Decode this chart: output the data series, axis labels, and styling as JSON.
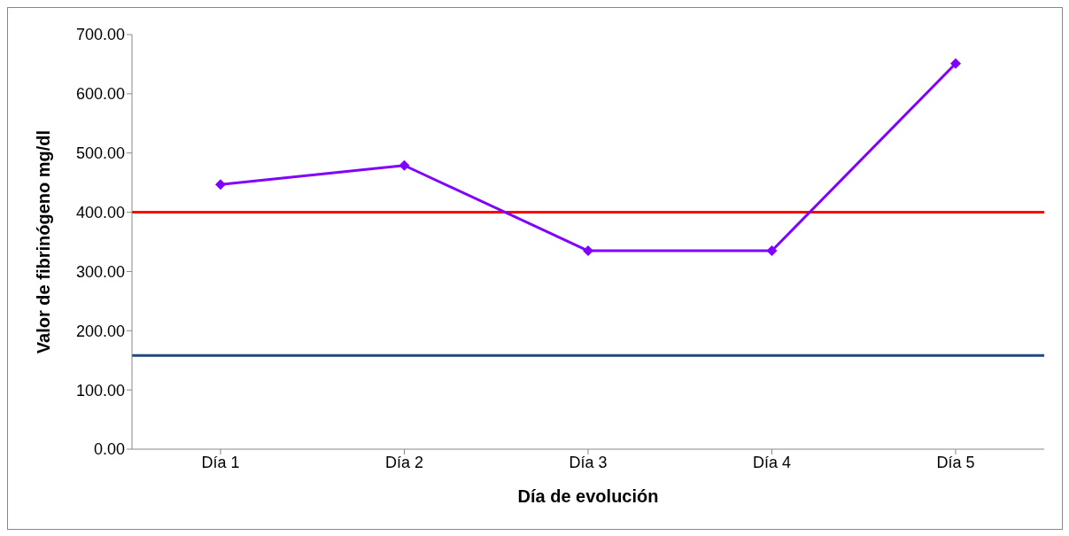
{
  "chart_data": {
    "type": "line",
    "xlabel": "Día de evolución",
    "ylabel": "Valor de fibrinógeno mg/dl",
    "categories": [
      "Día 1",
      "Día 2",
      "Día 3",
      "Día 4",
      "Día 5"
    ],
    "series": [
      {
        "color": "#8000ff",
        "values": [
          447,
          479,
          335,
          335,
          651
        ]
      }
    ],
    "ylim": [
      0,
      700
    ],
    "yticks": [
      {
        "value": 0,
        "label": "0.00"
      },
      {
        "value": 100,
        "label": "100.00"
      },
      {
        "value": 200,
        "label": "200.00"
      },
      {
        "value": 300,
        "label": "300.00"
      },
      {
        "value": 400,
        "label": "400.00"
      },
      {
        "value": 500,
        "label": "500.00"
      },
      {
        "value": 600,
        "label": "600.00"
      },
      {
        "value": 700,
        "label": "700.00"
      }
    ],
    "ref_lines": [
      {
        "axis": "y",
        "value": 400,
        "color": "#ff0000"
      },
      {
        "axis": "y",
        "value": 158,
        "color": "#1f497d"
      }
    ],
    "marker": "diamond",
    "grid": false,
    "legend": false
  }
}
